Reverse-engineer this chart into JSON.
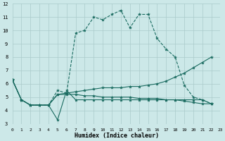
{
  "xlabel": "Humidex (Indice chaleur)",
  "x_ticks": [
    0,
    1,
    2,
    3,
    4,
    5,
    6,
    7,
    8,
    9,
    10,
    11,
    12,
    13,
    14,
    15,
    16,
    17,
    18,
    19,
    20,
    21,
    22,
    23
  ],
  "ylim": [
    3,
    12
  ],
  "xlim": [
    0,
    23
  ],
  "y_ticks": [
    3,
    4,
    5,
    6,
    7,
    8,
    9,
    10,
    11,
    12
  ],
  "bg_color": "#cce8e8",
  "line_color": "#1a6b60",
  "grid_color": "#aacaca",
  "s1_x": [
    0,
    1,
    2,
    3,
    4,
    5,
    6,
    7,
    8,
    9,
    10,
    11,
    12,
    13,
    14,
    15,
    16,
    17,
    18,
    19,
    20,
    21,
    22
  ],
  "s1_y": [
    6.3,
    4.8,
    4.4,
    4.4,
    4.4,
    5.5,
    5.3,
    9.8,
    10.0,
    11.0,
    10.8,
    11.2,
    11.5,
    10.2,
    11.2,
    11.2,
    9.4,
    8.6,
    8.0,
    5.9,
    5.0,
    4.8,
    4.5
  ],
  "s1_style": "--",
  "s2_x": [
    0,
    1,
    2,
    3,
    4,
    5,
    6,
    7,
    8,
    9,
    10,
    11,
    12,
    13,
    14,
    15,
    16,
    17,
    18,
    19,
    20,
    21,
    22
  ],
  "s2_y": [
    6.3,
    4.8,
    4.4,
    4.4,
    4.4,
    3.3,
    5.5,
    4.8,
    4.8,
    4.8,
    4.8,
    4.8,
    4.8,
    4.8,
    4.8,
    4.8,
    4.8,
    4.8,
    4.8,
    4.8,
    4.8,
    4.8,
    4.5
  ],
  "s2_style": "-",
  "s3_x": [
    0,
    1,
    2,
    3,
    4,
    5,
    6,
    7,
    8,
    9,
    10,
    11,
    12,
    13,
    14,
    15,
    16,
    17,
    18,
    19,
    20,
    21,
    22
  ],
  "s3_y": [
    6.3,
    4.8,
    4.4,
    4.4,
    4.4,
    5.2,
    5.3,
    5.4,
    5.5,
    5.6,
    5.7,
    5.7,
    5.7,
    5.8,
    5.8,
    5.9,
    6.0,
    6.2,
    6.5,
    6.8,
    7.2,
    7.6,
    8.0
  ],
  "s3_style": "-",
  "s4_x": [
    0,
    1,
    2,
    3,
    4,
    5,
    6,
    7,
    8,
    9,
    10,
    11,
    12,
    13,
    14,
    15,
    16,
    17,
    18,
    19,
    20,
    21,
    22
  ],
  "s4_y": [
    6.3,
    4.8,
    4.4,
    4.4,
    4.4,
    5.2,
    5.2,
    5.2,
    5.1,
    5.1,
    5.0,
    5.0,
    5.0,
    5.0,
    4.9,
    4.9,
    4.9,
    4.8,
    4.8,
    4.7,
    4.6,
    4.5,
    4.5
  ],
  "s4_style": "-"
}
